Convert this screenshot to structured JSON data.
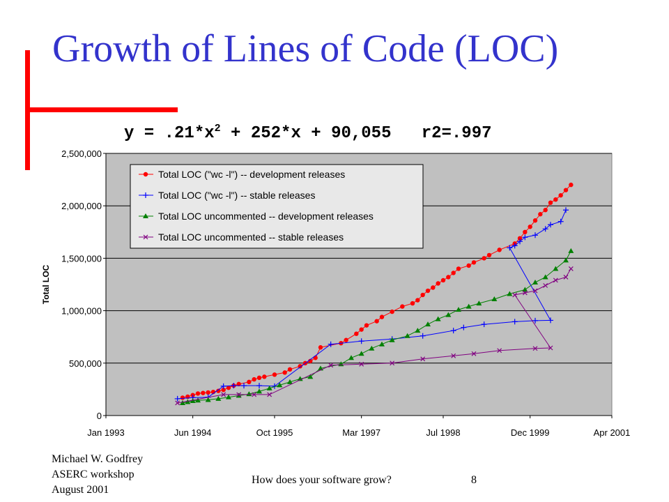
{
  "slide": {
    "title": "Growth of Lines of Code (LOC)",
    "equation_main": "y = .21*x",
    "equation_exp": "2",
    "equation_rest": " + 252*x + 90,055   r2=.997",
    "author": "Michael W. Godfrey",
    "event": "ASERC workshop",
    "date": "August 2001",
    "footer_title": "How does your software grow?",
    "page_number": "8"
  },
  "colors": {
    "title": "#3333cc",
    "accent_bar": "#ff0000",
    "plot_background": "#c0c0c0",
    "legend_background": "#e8e8e8"
  },
  "chart_data": {
    "type": "line",
    "ylabel": "Total LOC",
    "xlabel": "",
    "ylim": [
      0,
      2500000
    ],
    "xlim": [
      "Jan 1993",
      "Apr 2001"
    ],
    "x_tick_labels": [
      "Jan 1993",
      "Jun 1994",
      "Oct 1995",
      "Mar 1997",
      "Jul 1998",
      "Dec 1999",
      "Apr 2001"
    ],
    "y_tick_labels": [
      "0",
      "500,000",
      "1,000,000",
      "1,500,000",
      "2,000,000",
      "2,500,000"
    ],
    "y_ticks": [
      0,
      500000,
      1000000,
      1500000,
      2000000,
      2500000
    ],
    "grid": "horizontal",
    "legend_position": "top-left",
    "series": [
      {
        "name": "Total LOC (\"wc -l\") -- development releases",
        "color": "#ff0000",
        "marker": "circle",
        "points": [
          [
            "1994-04",
            170000
          ],
          [
            "1994-05",
            180000
          ],
          [
            "1994-06",
            195000
          ],
          [
            "1994-07",
            210000
          ],
          [
            "1994-08",
            215000
          ],
          [
            "1994-09",
            220000
          ],
          [
            "1994-10",
            225000
          ],
          [
            "1994-11",
            235000
          ],
          [
            "1994-12",
            245000
          ],
          [
            "1995-01",
            265000
          ],
          [
            "1995-02",
            285000
          ],
          [
            "1995-03",
            300000
          ],
          [
            "1995-05",
            320000
          ],
          [
            "1995-06",
            345000
          ],
          [
            "1995-07",
            360000
          ],
          [
            "1995-08",
            370000
          ],
          [
            "1995-10",
            390000
          ],
          [
            "1995-12",
            410000
          ],
          [
            "1996-01",
            440000
          ],
          [
            "1996-03",
            470000
          ],
          [
            "1996-04",
            500000
          ],
          [
            "1996-05",
            520000
          ],
          [
            "1996-06",
            550000
          ],
          [
            "1996-07",
            650000
          ],
          [
            "1996-11",
            690000
          ],
          [
            "1996-12",
            720000
          ],
          [
            "1997-02",
            780000
          ],
          [
            "1997-03",
            820000
          ],
          [
            "1997-04",
            860000
          ],
          [
            "1997-06",
            900000
          ],
          [
            "1997-07",
            940000
          ],
          [
            "1997-09",
            990000
          ],
          [
            "1997-11",
            1040000
          ],
          [
            "1998-01",
            1070000
          ],
          [
            "1998-02",
            1100000
          ],
          [
            "1998-03",
            1150000
          ],
          [
            "1998-04",
            1190000
          ],
          [
            "1998-05",
            1220000
          ],
          [
            "1998-06",
            1260000
          ],
          [
            "1998-07",
            1290000
          ],
          [
            "1998-08",
            1320000
          ],
          [
            "1998-09",
            1360000
          ],
          [
            "1998-10",
            1400000
          ],
          [
            "1998-12",
            1430000
          ],
          [
            "1999-01",
            1460000
          ],
          [
            "1999-03",
            1500000
          ],
          [
            "1999-04",
            1530000
          ],
          [
            "1999-06",
            1580000
          ],
          [
            "1999-09",
            1640000
          ],
          [
            "1999-10",
            1690000
          ],
          [
            "1999-11",
            1750000
          ],
          [
            "1999-12",
            1800000
          ],
          [
            "2000-01",
            1860000
          ],
          [
            "2000-02",
            1920000
          ],
          [
            "2000-03",
            1960000
          ],
          [
            "2000-04",
            2030000
          ],
          [
            "2000-05",
            2060000
          ],
          [
            "2000-06",
            2100000
          ],
          [
            "2000-07",
            2150000
          ],
          [
            "2000-08",
            2200000
          ]
        ]
      },
      {
        "name": "Total LOC (\"wc -l\") -- stable releases",
        "color": "#0000ff",
        "marker": "plus",
        "points": [
          [
            "1994-03",
            160000
          ],
          [
            "1994-06",
            170000
          ],
          [
            "1994-09",
            175000
          ],
          [
            "1994-12",
            280000
          ],
          [
            "1995-02",
            285000
          ],
          [
            "1995-04",
            285000
          ],
          [
            "1995-07",
            285000
          ],
          [
            "1995-10",
            280000
          ],
          [
            "1996-09",
            680000
          ],
          [
            "1997-03",
            710000
          ],
          [
            "1997-09",
            730000
          ],
          [
            "1998-03",
            760000
          ],
          [
            "1998-09",
            810000
          ],
          [
            "1998-11",
            840000
          ],
          [
            "1999-03",
            870000
          ],
          [
            "1999-09",
            895000
          ],
          [
            "2000-01",
            905000
          ],
          [
            "2000-04",
            908000
          ],
          [
            "1999-08",
            1600000
          ],
          [
            "1999-09",
            1620000
          ],
          [
            "1999-10",
            1660000
          ],
          [
            "1999-11",
            1700000
          ],
          [
            "2000-01",
            1720000
          ],
          [
            "2000-03",
            1780000
          ],
          [
            "2000-04",
            1820000
          ],
          [
            "2000-06",
            1850000
          ],
          [
            "2000-07",
            1960000
          ]
        ]
      },
      {
        "name": "Total LOC uncommented -- development releases",
        "color": "#008000",
        "marker": "triangle",
        "points": [
          [
            "1994-04",
            120000
          ],
          [
            "1994-05",
            130000
          ],
          [
            "1994-06",
            140000
          ],
          [
            "1994-07",
            145000
          ],
          [
            "1994-09",
            150000
          ],
          [
            "1994-11",
            160000
          ],
          [
            "1995-01",
            175000
          ],
          [
            "1995-03",
            190000
          ],
          [
            "1995-05",
            205000
          ],
          [
            "1995-07",
            230000
          ],
          [
            "1995-09",
            260000
          ],
          [
            "1995-11",
            290000
          ],
          [
            "1996-01",
            320000
          ],
          [
            "1996-03",
            350000
          ],
          [
            "1996-05",
            370000
          ],
          [
            "1996-07",
            450000
          ],
          [
            "1996-11",
            490000
          ],
          [
            "1997-01",
            550000
          ],
          [
            "1997-03",
            590000
          ],
          [
            "1997-05",
            640000
          ],
          [
            "1997-07",
            680000
          ],
          [
            "1997-09",
            720000
          ],
          [
            "1997-12",
            760000
          ],
          [
            "1998-02",
            810000
          ],
          [
            "1998-04",
            870000
          ],
          [
            "1998-06",
            920000
          ],
          [
            "1998-08",
            960000
          ],
          [
            "1998-10",
            1010000
          ],
          [
            "1998-12",
            1040000
          ],
          [
            "1999-02",
            1070000
          ],
          [
            "1999-05",
            1110000
          ],
          [
            "1999-08",
            1160000
          ],
          [
            "1999-11",
            1200000
          ],
          [
            "2000-01",
            1270000
          ],
          [
            "2000-03",
            1320000
          ],
          [
            "2000-05",
            1400000
          ],
          [
            "2000-07",
            1480000
          ],
          [
            "2000-08",
            1570000
          ]
        ]
      },
      {
        "name": "Total LOC uncommented -- stable releases",
        "color": "#800080",
        "marker": "x",
        "points": [
          [
            "1994-03",
            120000
          ],
          [
            "1994-12",
            200000
          ],
          [
            "1995-03",
            200000
          ],
          [
            "1995-06",
            200000
          ],
          [
            "1995-09",
            200000
          ],
          [
            "1996-09",
            480000
          ],
          [
            "1997-03",
            490000
          ],
          [
            "1997-09",
            500000
          ],
          [
            "1998-03",
            540000
          ],
          [
            "1998-09",
            570000
          ],
          [
            "1999-01",
            590000
          ],
          [
            "1999-06",
            620000
          ],
          [
            "2000-01",
            640000
          ],
          [
            "2000-04",
            645000
          ],
          [
            "1999-09",
            1150000
          ],
          [
            "1999-11",
            1170000
          ],
          [
            "2000-01",
            1190000
          ],
          [
            "2000-03",
            1240000
          ],
          [
            "2000-05",
            1290000
          ],
          [
            "2000-07",
            1320000
          ],
          [
            "2000-08",
            1400000
          ]
        ]
      }
    ]
  }
}
